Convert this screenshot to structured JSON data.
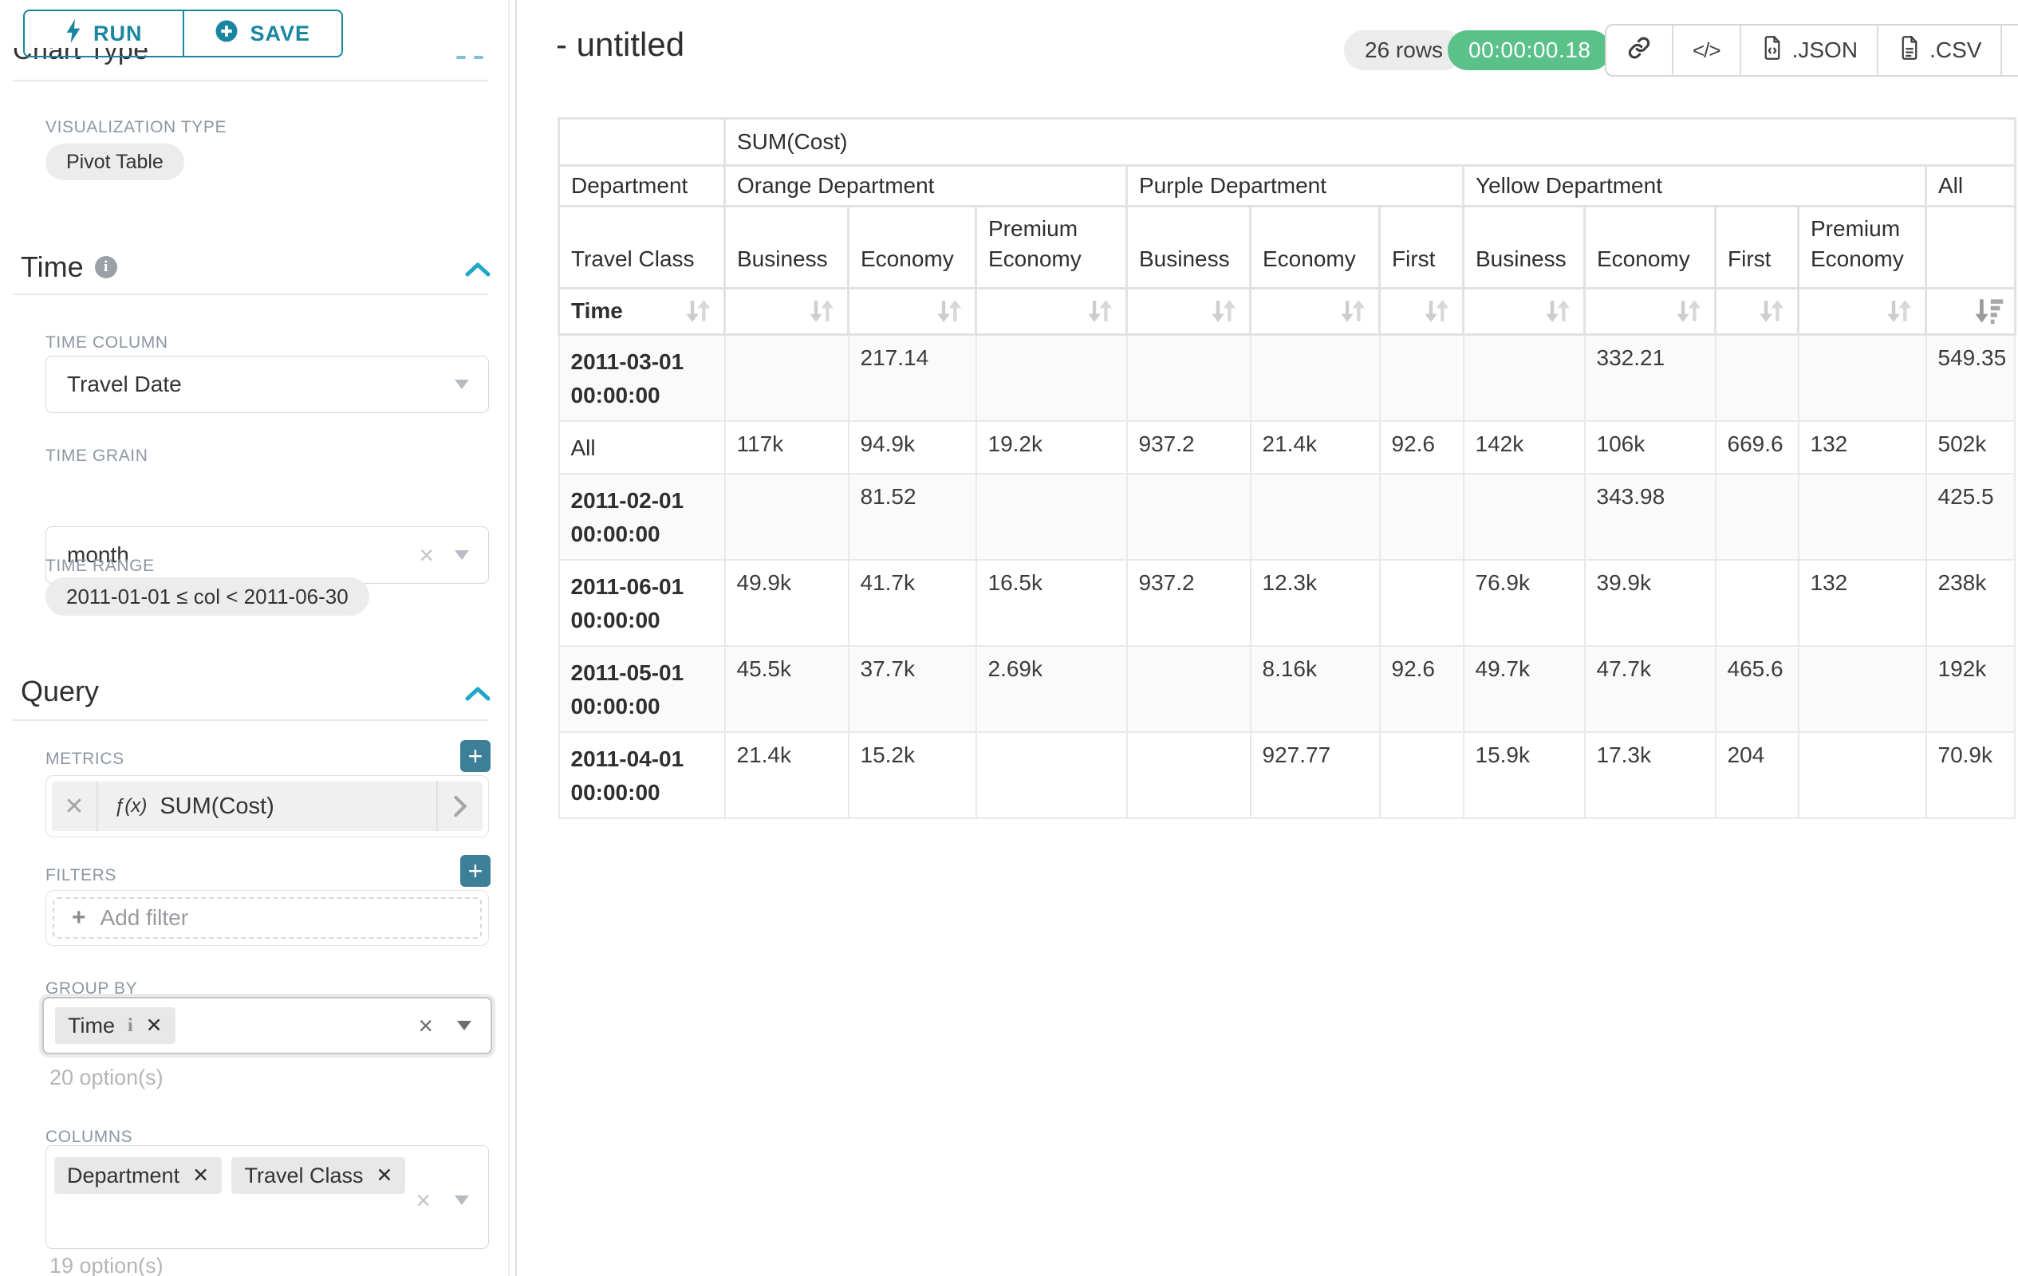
{
  "sidebar": {
    "run_label": "RUN",
    "save_label": "SAVE",
    "clipped_heading": "Chart Type",
    "viz_type_label": "VISUALIZATION TYPE",
    "viz_type_value": "Pivot Table",
    "time_section": {
      "title": "Time",
      "time_column_label": "TIME COLUMN",
      "time_column_value": "Travel Date",
      "time_grain_label": "TIME GRAIN",
      "time_grain_value": "month",
      "time_range_label": "TIME RANGE",
      "time_range_value": "2011-01-01 ≤ col < 2011-06-30"
    },
    "query_section": {
      "title": "Query",
      "metrics_label": "METRICS",
      "metric_fx": "ƒ(x)",
      "metric_value": "SUM(Cost)",
      "filters_label": "FILTERS",
      "add_filter_label": "Add filter",
      "group_by_label": "GROUP BY",
      "group_by_tags": [
        {
          "label": "Time"
        }
      ],
      "group_by_options": "20 option(s)",
      "columns_label": "COLUMNS",
      "columns_tags": [
        {
          "label": "Department"
        },
        {
          "label": "Travel Class"
        }
      ],
      "columns_options": "19 option(s)"
    }
  },
  "header": {
    "title": "- untitled",
    "rows_badge": "26 rows",
    "timer": "00:00:00.18",
    "json_label": ".JSON",
    "csv_label": ".CSV"
  },
  "colors": {
    "accent_teal": "#1a85a0",
    "chevron_teal": "#20a7c9",
    "success_green": "#5ac189",
    "plus_button_teal": "#3d7f99"
  },
  "pivot_table": {
    "metric_header": "SUM(Cost)",
    "department_header": "Department",
    "travel_class_header": "Travel Class",
    "time_header": "Time",
    "sorted_column": "All",
    "sort_direction": "descending",
    "groups": [
      {
        "label": "Orange Department",
        "cols": [
          "Business",
          "Economy",
          "Premium Economy"
        ]
      },
      {
        "label": "Purple Department",
        "cols": [
          "Business",
          "Economy",
          "First"
        ]
      },
      {
        "label": "Yellow Department",
        "cols": [
          "Business",
          "Economy",
          "First",
          "Premium Economy"
        ]
      },
      {
        "label": "All",
        "cols": [
          ""
        ]
      }
    ],
    "rows": [
      {
        "label": "2011-03-01 00:00:00",
        "values": [
          "",
          "217.14",
          "",
          "",
          "",
          "",
          "",
          "332.21",
          "",
          "",
          "549.35"
        ]
      },
      {
        "label": "All",
        "values": [
          "117k",
          "94.9k",
          "19.2k",
          "937.2",
          "21.4k",
          "92.6",
          "142k",
          "106k",
          "669.6",
          "132",
          "502k"
        ]
      },
      {
        "label": "2011-02-01 00:00:00",
        "values": [
          "",
          "81.52",
          "",
          "",
          "",
          "",
          "",
          "343.98",
          "",
          "",
          "425.5"
        ]
      },
      {
        "label": "2011-06-01 00:00:00",
        "values": [
          "49.9k",
          "41.7k",
          "16.5k",
          "937.2",
          "12.3k",
          "",
          "76.9k",
          "39.9k",
          "",
          "132",
          "238k"
        ]
      },
      {
        "label": "2011-05-01 00:00:00",
        "values": [
          "45.5k",
          "37.7k",
          "2.69k",
          "",
          "8.16k",
          "92.6",
          "49.7k",
          "47.7k",
          "465.6",
          "",
          "192k"
        ]
      },
      {
        "label": "2011-04-01 00:00:00",
        "values": [
          "21.4k",
          "15.2k",
          "",
          "",
          "927.77",
          "",
          "15.9k",
          "17.3k",
          "204",
          "",
          "70.9k"
        ]
      }
    ]
  }
}
